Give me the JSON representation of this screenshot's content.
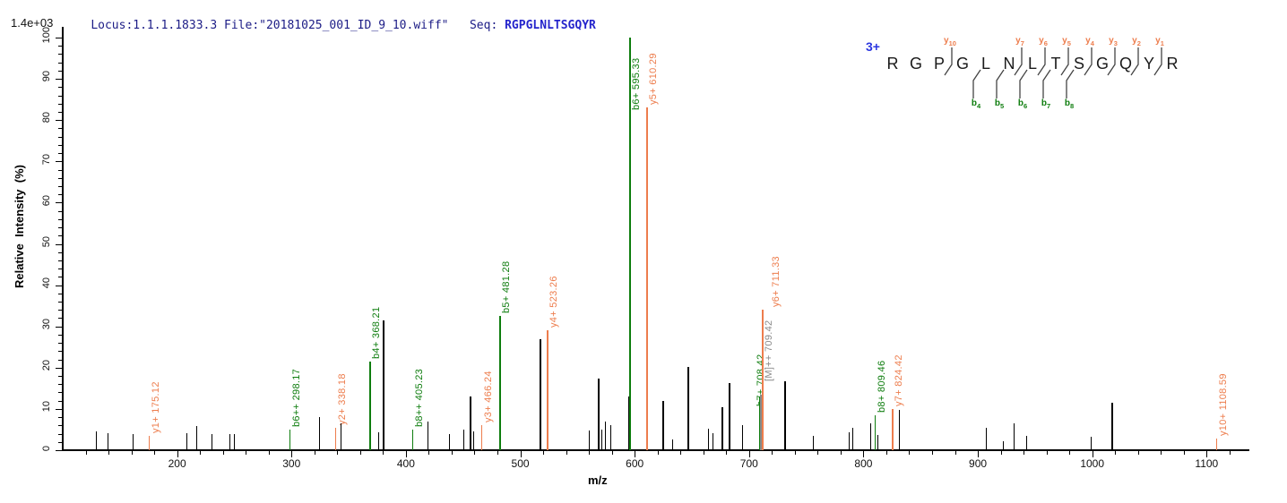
{
  "header": {
    "locus_file": "Locus:1.1.1.1833.3 File:\"20181025_001_ID_9_10.wiff\"",
    "seq_label": "Seq:",
    "seq_value": "RGPGLNLTSGQYR",
    "intensity_scale": "1.4e+03"
  },
  "colors": {
    "b_ion": "#0e7d0e",
    "y_ion": "#ed7d4d",
    "precursor": "#8a8a8a",
    "peak": "#000000",
    "header_text": "#1c1c86",
    "seq_text": "#2525cc",
    "charge_text": "#2a35e0",
    "axis": "#000000"
  },
  "axes": {
    "x_label": "m/z",
    "y_label": "Relative  Intensity  (%)",
    "x_min": 100,
    "x_max": 1135,
    "x_tick_labels": [
      200,
      300,
      400,
      500,
      600,
      700,
      800,
      900,
      1000,
      1100
    ],
    "x_minor_step": 20,
    "y_min": 0,
    "y_max": 100,
    "y_major_step": 10,
    "y_minor_step": 2
  },
  "peptide": {
    "charge": "3+",
    "residues": [
      "R",
      "G",
      "P",
      "G",
      "L",
      "N",
      "L",
      "T",
      "S",
      "G",
      "Q",
      "Y",
      "R"
    ],
    "y_marks": [
      {
        "gap": 3,
        "num": "10"
      },
      {
        "gap": 6,
        "num": "7"
      },
      {
        "gap": 7,
        "num": "6"
      },
      {
        "gap": 8,
        "num": "5"
      },
      {
        "gap": 9,
        "num": "4"
      },
      {
        "gap": 10,
        "num": "3"
      },
      {
        "gap": 11,
        "num": "2"
      },
      {
        "gap": 12,
        "num": "1"
      }
    ],
    "b_marks": [
      {
        "gap": 4,
        "num": "4"
      },
      {
        "gap": 5,
        "num": "5"
      },
      {
        "gap": 6,
        "num": "6"
      },
      {
        "gap": 7,
        "num": "7"
      },
      {
        "gap": 8,
        "num": "8"
      }
    ]
  },
  "chart_data": {
    "type": "bar",
    "title": "",
    "xlabel": "m/z",
    "ylabel": "Relative Intensity (%)",
    "xlim": [
      100,
      1135
    ],
    "ylim": [
      0,
      100
    ],
    "grid": false,
    "legend": false,
    "peaks": [
      {
        "mz": 129.0,
        "intensity": 4.6,
        "ion": "unassigned"
      },
      {
        "mz": 139.0,
        "intensity": 4.2,
        "ion": "unassigned"
      },
      {
        "mz": 161.0,
        "intensity": 4.0,
        "ion": "unassigned"
      },
      {
        "mz": 175.12,
        "intensity": 3.5,
        "ion": "y1+",
        "label": "y1+ 175.12"
      },
      {
        "mz": 208.0,
        "intensity": 4.1,
        "ion": "unassigned"
      },
      {
        "mz": 217.0,
        "intensity": 5.8,
        "ion": "unassigned"
      },
      {
        "mz": 230.0,
        "intensity": 3.9,
        "ion": "unassigned"
      },
      {
        "mz": 246.0,
        "intensity": 4.0,
        "ion": "unassigned"
      },
      {
        "mz": 250.0,
        "intensity": 4.0,
        "ion": "unassigned"
      },
      {
        "mz": 298.17,
        "intensity": 5.0,
        "ion": "b6++",
        "label": "b6++ 298.17"
      },
      {
        "mz": 324.0,
        "intensity": 8.0,
        "ion": "unassigned"
      },
      {
        "mz": 338.18,
        "intensity": 5.5,
        "ion": "y2+",
        "label": "y2+ 338.18"
      },
      {
        "mz": 343.0,
        "intensity": 6.5,
        "ion": "unassigned"
      },
      {
        "mz": 368.21,
        "intensity": 21.5,
        "ion": "b4+",
        "label": "b4+ 368.21"
      },
      {
        "mz": 376.0,
        "intensity": 4.3,
        "ion": "unassigned"
      },
      {
        "mz": 380.0,
        "intensity": 31.5,
        "ion": "unassigned"
      },
      {
        "mz": 405.23,
        "intensity": 5.0,
        "ion": "b8++",
        "label": "b8++ 405.23"
      },
      {
        "mz": 419.0,
        "intensity": 7.0,
        "ion": "unassigned"
      },
      {
        "mz": 438.0,
        "intensity": 4.0,
        "ion": "unassigned"
      },
      {
        "mz": 450.0,
        "intensity": 5.0,
        "ion": "unassigned"
      },
      {
        "mz": 456.0,
        "intensity": 13.0,
        "ion": "unassigned"
      },
      {
        "mz": 459.0,
        "intensity": 4.5,
        "ion": "unassigned"
      },
      {
        "mz": 466.24,
        "intensity": 6.0,
        "ion": "y3+",
        "label": "y3+ 466.24"
      },
      {
        "mz": 481.28,
        "intensity": 32.5,
        "ion": "b5+",
        "label": "b5+ 481.28"
      },
      {
        "mz": 517.0,
        "intensity": 27.0,
        "ion": "unassigned"
      },
      {
        "mz": 523.26,
        "intensity": 29.0,
        "ion": "y4+",
        "label": "y4+ 523.26"
      },
      {
        "mz": 560.0,
        "intensity": 4.7,
        "ion": "unassigned"
      },
      {
        "mz": 568.0,
        "intensity": 17.3,
        "ion": "unassigned"
      },
      {
        "mz": 571.0,
        "intensity": 5.0,
        "ion": "unassigned"
      },
      {
        "mz": 574.0,
        "intensity": 7.0,
        "ion": "unassigned"
      },
      {
        "mz": 579.0,
        "intensity": 6.0,
        "ion": "unassigned"
      },
      {
        "mz": 594.0,
        "intensity": 13.0,
        "ion": "unassigned"
      },
      {
        "mz": 595.33,
        "intensity": 100.0,
        "ion": "b6+",
        "label": "b6+ 595.33",
        "ldy": 84
      },
      {
        "mz": 610.29,
        "intensity": 83.0,
        "ion": "y5+",
        "label": "y5+ 610.29"
      },
      {
        "mz": 624.0,
        "intensity": 12.0,
        "ion": "unassigned"
      },
      {
        "mz": 633.0,
        "intensity": 2.5,
        "ion": "unassigned"
      },
      {
        "mz": 646.0,
        "intensity": 20.2,
        "ion": "unassigned"
      },
      {
        "mz": 664.0,
        "intensity": 5.2,
        "ion": "unassigned"
      },
      {
        "mz": 668.0,
        "intensity": 4.1,
        "ion": "unassigned"
      },
      {
        "mz": 676.0,
        "intensity": 10.4,
        "ion": "unassigned"
      },
      {
        "mz": 682.0,
        "intensity": 16.3,
        "ion": "unassigned"
      },
      {
        "mz": 694.0,
        "intensity": 6.1,
        "ion": "unassigned"
      },
      {
        "mz": 708.42,
        "intensity": 13.0,
        "ion": "b7+",
        "label": "b7+ 708.42",
        "ldx": -6,
        "ldy": 14
      },
      {
        "mz": 709.42,
        "intensity": 13.5,
        "ion": "[M]++",
        "label": "[M]++ 709.42",
        "ldx": 2,
        "ldy": -12
      },
      {
        "mz": 711.33,
        "intensity": 34.0,
        "ion": "y6+",
        "label": "y6+ 711.33",
        "ldx": 8
      },
      {
        "mz": 731.0,
        "intensity": 16.8,
        "ion": "unassigned"
      },
      {
        "mz": 756.0,
        "intensity": 3.5,
        "ion": "unassigned"
      },
      {
        "mz": 787.0,
        "intensity": 4.3,
        "ion": "unassigned"
      },
      {
        "mz": 790.0,
        "intensity": 5.4,
        "ion": "unassigned"
      },
      {
        "mz": 806.0,
        "intensity": 6.5,
        "ion": "unassigned"
      },
      {
        "mz": 809.46,
        "intensity": 8.5,
        "ion": "b8+",
        "label": "b8+ 809.46"
      },
      {
        "mz": 812.0,
        "intensity": 3.7,
        "ion": "unassigned"
      },
      {
        "mz": 824.42,
        "intensity": 10.0,
        "ion": "y7+",
        "label": "y7+ 824.42"
      },
      {
        "mz": 831.0,
        "intensity": 9.7,
        "ion": "unassigned"
      },
      {
        "mz": 907.0,
        "intensity": 5.4,
        "ion": "unassigned"
      },
      {
        "mz": 922.0,
        "intensity": 2.2,
        "ion": "unassigned"
      },
      {
        "mz": 931.0,
        "intensity": 6.5,
        "ion": "unassigned"
      },
      {
        "mz": 942.0,
        "intensity": 3.5,
        "ion": "unassigned"
      },
      {
        "mz": 999.0,
        "intensity": 3.2,
        "ion": "unassigned"
      },
      {
        "mz": 1017.0,
        "intensity": 11.4,
        "ion": "unassigned"
      },
      {
        "mz": 1108.59,
        "intensity": 2.8,
        "ion": "y10+",
        "label": "y10+ 1108.59"
      }
    ]
  }
}
